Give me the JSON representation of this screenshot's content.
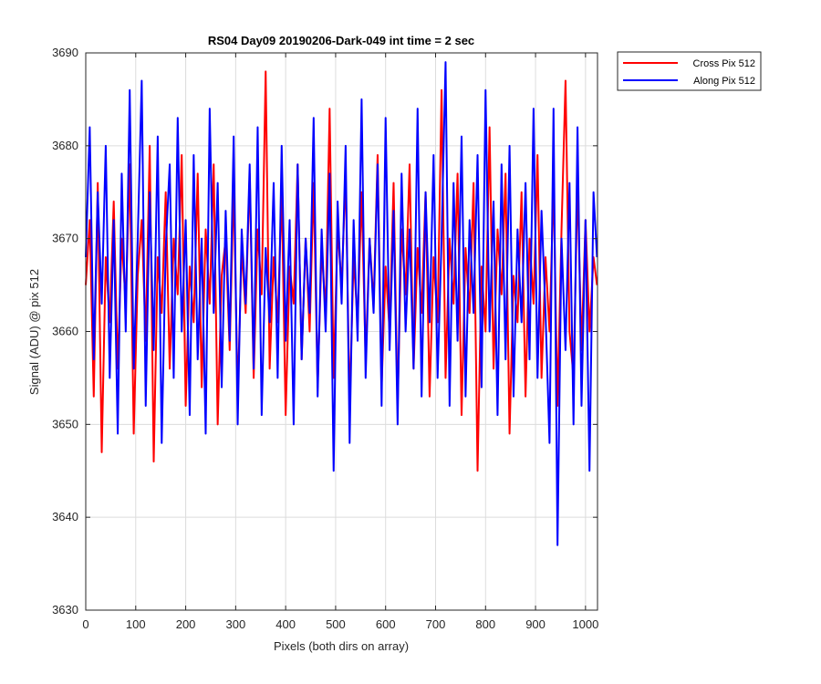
{
  "chart_data": {
    "type": "line",
    "title": "RS04 Day09 20190206-Dark-049 int time = 2 sec",
    "xlabel": "Pixels (both dirs on array)",
    "ylabel": "Signal (ADU) @ pix 512",
    "xlim": [
      0,
      1024
    ],
    "ylim": [
      3630,
      3690
    ],
    "xticks": [
      0,
      100,
      200,
      300,
      400,
      500,
      600,
      700,
      800,
      900,
      1000
    ],
    "yticks": [
      3630,
      3640,
      3650,
      3660,
      3670,
      3680,
      3690
    ],
    "grid": true,
    "legend_position": "outside-top-right",
    "x": [
      0,
      8,
      16,
      24,
      32,
      40,
      48,
      56,
      64,
      72,
      80,
      88,
      96,
      104,
      112,
      120,
      128,
      136,
      144,
      152,
      160,
      168,
      176,
      184,
      192,
      200,
      208,
      216,
      224,
      232,
      240,
      248,
      256,
      264,
      272,
      280,
      288,
      296,
      304,
      312,
      320,
      328,
      336,
      344,
      352,
      360,
      368,
      376,
      384,
      392,
      400,
      408,
      416,
      424,
      432,
      440,
      448,
      456,
      464,
      472,
      480,
      488,
      496,
      504,
      512,
      520,
      528,
      536,
      544,
      552,
      560,
      568,
      576,
      584,
      592,
      600,
      608,
      616,
      624,
      632,
      640,
      648,
      656,
      664,
      672,
      680,
      688,
      696,
      704,
      712,
      720,
      728,
      736,
      744,
      752,
      760,
      768,
      776,
      784,
      792,
      800,
      808,
      816,
      824,
      832,
      840,
      848,
      856,
      864,
      872,
      880,
      888,
      896,
      904,
      912,
      920,
      928,
      936,
      944,
      952,
      960,
      968,
      976,
      984,
      992,
      1000,
      1008,
      1016,
      1023
    ],
    "series": [
      {
        "name": "Cross Pix 512",
        "color": "#ff0000",
        "values": [
          3665,
          3672,
          3653,
          3676,
          3647,
          3668,
          3661,
          3674,
          3656,
          3670,
          3663,
          3678,
          3649,
          3666,
          3672,
          3659,
          3680,
          3646,
          3668,
          3662,
          3675,
          3656,
          3670,
          3664,
          3679,
          3652,
          3667,
          3661,
          3677,
          3654,
          3671,
          3663,
          3678,
          3650,
          3666,
          3670,
          3658,
          3676,
          3653,
          3669,
          3662,
          3677,
          3655,
          3671,
          3664,
          3688,
          3656,
          3668,
          3661,
          3675,
          3651,
          3667,
          3663,
          3678,
          3657,
          3670,
          3660,
          3676,
          3654,
          3669,
          3662,
          3684,
          3655,
          3671,
          3665,
          3677,
          3652,
          3668,
          3661,
          3675,
          3657,
          3670,
          3663,
          3679,
          3654,
          3667,
          3660,
          3676,
          3652,
          3671,
          3664,
          3678,
          3656,
          3669,
          3662,
          3675,
          3653,
          3668,
          3661,
          3686,
          3655,
          3670,
          3663,
          3677,
          3651,
          3669,
          3662,
          3676,
          3645,
          3667,
          3660,
          3682,
          3656,
          3671,
          3664,
          3677,
          3649,
          3666,
          3661,
          3675,
          3653,
          3670,
          3663,
          3679,
          3655,
          3668,
          3660,
          3676,
          3652,
          3671,
          3687,
          3660,
          3655,
          3676,
          3658,
          3672,
          3660,
          3668,
          3665
        ]
      },
      {
        "name": "Along Pix 512",
        "color": "#0000ff",
        "values": [
          3668,
          3682,
          3657,
          3675,
          3663,
          3680,
          3655,
          3672,
          3649,
          3677,
          3660,
          3686,
          3656,
          3670,
          3687,
          3652,
          3675,
          3658,
          3681,
          3648,
          3669,
          3678,
          3655,
          3683,
          3660,
          3672,
          3651,
          3679,
          3657,
          3670,
          3649,
          3684,
          3662,
          3676,
          3654,
          3673,
          3659,
          3681,
          3650,
          3671,
          3663,
          3678,
          3656,
          3682,
          3651,
          3669,
          3661,
          3676,
          3655,
          3680,
          3659,
          3672,
          3650,
          3678,
          3657,
          3670,
          3662,
          3683,
          3653,
          3671,
          3660,
          3677,
          3645,
          3674,
          3663,
          3680,
          3648,
          3672,
          3659,
          3685,
          3655,
          3670,
          3662,
          3678,
          3652,
          3683,
          3658,
          3673,
          3650,
          3677,
          3660,
          3671,
          3656,
          3684,
          3653,
          3675,
          3661,
          3679,
          3655,
          3670,
          3689,
          3652,
          3676,
          3659,
          3681,
          3653,
          3672,
          3662,
          3679,
          3654,
          3686,
          3660,
          3674,
          3651,
          3678,
          3657,
          3680,
          3653,
          3671,
          3661,
          3676,
          3657,
          3684,
          3655,
          3673,
          3662,
          3648,
          3684,
          3637,
          3670,
          3658,
          3676,
          3650,
          3682,
          3652,
          3672,
          3645,
          3675,
          3668
        ]
      }
    ]
  }
}
